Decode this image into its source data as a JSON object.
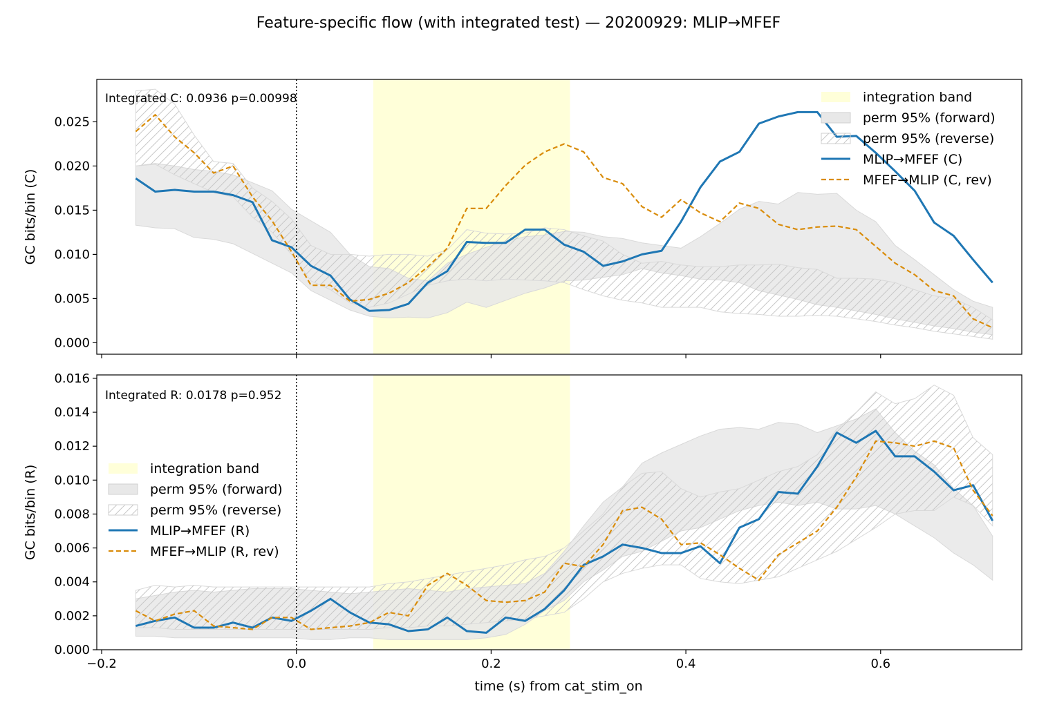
{
  "figure": {
    "title": "Feature-specific flow (with integrated test) — 20200929: MLIP→MFEF",
    "xlabel": "time (s) from cat_stim_on"
  },
  "colors": {
    "forward": "#1f77b4",
    "reverse": "#d98c0a",
    "band": "#ffffd9",
    "perm_forward_fill": "#e8e8e8",
    "perm_reverse_hatch": "#c8c8c8",
    "stim_line": "#000000"
  },
  "chart_data": [
    {
      "type": "line",
      "panel": "top",
      "ylabel": "GC bits/bin (C)",
      "annotation": "Integrated C: 0.0936  p=0.00998",
      "xlim": [
        -0.205,
        0.745
      ],
      "ylim": [
        -0.0013,
        0.0298
      ],
      "xticks": [
        -0.2,
        0.0,
        0.2,
        0.4,
        0.6
      ],
      "xtick_labels": [],
      "yticks": [
        0.0,
        0.005,
        0.01,
        0.015,
        0.02,
        0.025
      ],
      "ytick_labels": [
        "0.000",
        "0.005",
        "0.010",
        "0.015",
        "0.020",
        "0.025"
      ],
      "integration_band": [
        0.079,
        0.281
      ],
      "stim_onset": 0.0,
      "legend_position": "top-right",
      "legend": [
        "integration band",
        "perm 95% (forward)",
        "perm 95% (reverse)",
        "MLIP→MFEF (C)",
        "MFEF→MLIP (C, rev)"
      ],
      "x": [
        -0.165,
        -0.145,
        -0.125,
        -0.105,
        -0.085,
        -0.065,
        -0.045,
        -0.025,
        -0.005,
        0.015,
        0.035,
        0.055,
        0.075,
        0.095,
        0.115,
        0.135,
        0.155,
        0.175,
        0.195,
        0.215,
        0.235,
        0.255,
        0.275,
        0.295,
        0.315,
        0.335,
        0.355,
        0.375,
        0.395,
        0.415,
        0.435,
        0.455,
        0.475,
        0.495,
        0.515,
        0.535,
        0.555,
        0.575,
        0.595,
        0.615,
        0.635,
        0.655,
        0.675,
        0.695,
        0.715
      ],
      "series": [
        {
          "name": "MLIP→MFEF (C)",
          "style": "solid",
          "values": [
            0.0186,
            0.0171,
            0.0173,
            0.0171,
            0.0171,
            0.0167,
            0.0159,
            0.0116,
            0.0108,
            0.0087,
            0.0076,
            0.0049,
            0.0036,
            0.0037,
            0.0044,
            0.0068,
            0.0081,
            0.0114,
            0.0113,
            0.0113,
            0.0128,
            0.0128,
            0.0111,
            0.0103,
            0.0087,
            0.0092,
            0.01,
            0.0104,
            0.0137,
            0.0176,
            0.0205,
            0.0216,
            0.0248,
            0.0256,
            0.0261,
            0.0261,
            0.0233,
            0.0234,
            0.0215,
            0.0194,
            0.0172,
            0.0136,
            0.0121,
            0.0094,
            0.0068
          ]
        },
        {
          "name": "MFEF→MLIP (C, rev)",
          "style": "dashed",
          "values": [
            0.0239,
            0.0258,
            0.0233,
            0.0215,
            0.0192,
            0.02,
            0.0165,
            0.0138,
            0.0103,
            0.0065,
            0.0065,
            0.0047,
            0.0049,
            0.0056,
            0.0068,
            0.0086,
            0.0107,
            0.0152,
            0.0152,
            0.0178,
            0.0201,
            0.0216,
            0.0225,
            0.0216,
            0.0187,
            0.018,
            0.0154,
            0.0142,
            0.0162,
            0.0147,
            0.0137,
            0.0158,
            0.0152,
            0.0134,
            0.0128,
            0.0131,
            0.0132,
            0.0128,
            0.0109,
            0.009,
            0.0077,
            0.0059,
            0.0053,
            0.0027,
            0.0017
          ]
        }
      ],
      "bands": [
        {
          "name": "perm 95% (forward)",
          "style": "fill",
          "lower": [
            0.0133,
            0.013,
            0.0129,
            0.0119,
            0.0117,
            0.0112,
            0.0101,
            0.009,
            0.0079,
            0.0059,
            0.0048,
            0.0037,
            0.003,
            0.0028,
            0.0029,
            0.0028,
            0.0034,
            0.0046,
            0.004,
            0.0048,
            0.0056,
            0.0062,
            0.007,
            0.0071,
            0.0074,
            0.0077,
            0.0084,
            0.0079,
            0.0076,
            0.0072,
            0.0071,
            0.0068,
            0.0059,
            0.0054,
            0.0049,
            0.0043,
            0.004,
            0.0036,
            0.0032,
            0.0027,
            0.0023,
            0.0019,
            0.0016,
            0.0012,
            0.0009
          ],
          "upper": [
            0.02,
            0.0203,
            0.02,
            0.0196,
            0.0194,
            0.019,
            0.0181,
            0.0172,
            0.0151,
            0.0138,
            0.0125,
            0.01,
            0.0086,
            0.0084,
            0.0073,
            0.007,
            0.009,
            0.01,
            0.0108,
            0.0115,
            0.012,
            0.0122,
            0.0126,
            0.0125,
            0.012,
            0.0118,
            0.0113,
            0.011,
            0.0107,
            0.012,
            0.0135,
            0.0151,
            0.016,
            0.0157,
            0.017,
            0.0168,
            0.0169,
            0.015,
            0.0137,
            0.011,
            0.0094,
            0.0077,
            0.006,
            0.0047,
            0.004
          ]
        },
        {
          "name": "perm 95% (reverse)",
          "style": "hatch",
          "lower": [
            0.02,
            0.0202,
            0.019,
            0.018,
            0.017,
            0.0165,
            0.0142,
            0.0125,
            0.01,
            0.007,
            0.006,
            0.0045,
            0.004,
            0.0045,
            0.0055,
            0.0065,
            0.007,
            0.0072,
            0.007,
            0.0072,
            0.0071,
            0.007,
            0.0068,
            0.006,
            0.0053,
            0.0048,
            0.0045,
            0.004,
            0.004,
            0.004,
            0.0035,
            0.0033,
            0.0032,
            0.003,
            0.003,
            0.0031,
            0.003,
            0.0027,
            0.0024,
            0.002,
            0.0017,
            0.0013,
            0.001,
            0.0007,
            0.0004
          ],
          "upper": [
            0.0285,
            0.0287,
            0.027,
            0.0235,
            0.0205,
            0.0203,
            0.0175,
            0.016,
            0.014,
            0.011,
            0.01,
            0.01,
            0.0098,
            0.01,
            0.01,
            0.0098,
            0.0105,
            0.0128,
            0.0124,
            0.0123,
            0.0124,
            0.013,
            0.0128,
            0.0121,
            0.0115,
            0.01,
            0.009,
            0.0092,
            0.0088,
            0.0086,
            0.0086,
            0.0088,
            0.0088,
            0.0089,
            0.0085,
            0.0083,
            0.0073,
            0.0073,
            0.0072,
            0.0068,
            0.006,
            0.0053,
            0.005,
            0.004,
            0.0026
          ]
        }
      ]
    },
    {
      "type": "line",
      "panel": "bottom",
      "ylabel": "GC bits/bin (R)",
      "annotation": "Integrated R: 0.0178  p=0.952",
      "xlim": [
        -0.205,
        0.745
      ],
      "ylim": [
        0.0,
        0.0162
      ],
      "xticks": [
        -0.2,
        0.0,
        0.2,
        0.4,
        0.6
      ],
      "xtick_labels": [
        "−0.2",
        "0.0",
        "0.2",
        "0.4",
        "0.6"
      ],
      "yticks": [
        0.0,
        0.002,
        0.004,
        0.006,
        0.008,
        0.01,
        0.012,
        0.014,
        0.016
      ],
      "ytick_labels": [
        "0.000",
        "0.002",
        "0.004",
        "0.006",
        "0.008",
        "0.010",
        "0.012",
        "0.014",
        "0.016"
      ],
      "integration_band": [
        0.079,
        0.281
      ],
      "stim_onset": 0.0,
      "legend_position": "center-left",
      "legend": [
        "integration band",
        "perm 95% (forward)",
        "perm 95% (reverse)",
        "MLIP→MFEF (R)",
        "MFEF→MLIP (R, rev)"
      ],
      "x": [
        -0.165,
        -0.145,
        -0.125,
        -0.105,
        -0.085,
        -0.065,
        -0.045,
        -0.025,
        -0.005,
        0.015,
        0.035,
        0.055,
        0.075,
        0.095,
        0.115,
        0.135,
        0.155,
        0.175,
        0.195,
        0.215,
        0.235,
        0.255,
        0.275,
        0.295,
        0.315,
        0.335,
        0.355,
        0.375,
        0.395,
        0.415,
        0.435,
        0.455,
        0.475,
        0.495,
        0.515,
        0.535,
        0.555,
        0.575,
        0.595,
        0.615,
        0.635,
        0.655,
        0.675,
        0.695,
        0.715
      ],
      "series": [
        {
          "name": "MLIP→MFEF (R)",
          "style": "solid",
          "values": [
            0.0014,
            0.0017,
            0.0019,
            0.0013,
            0.0013,
            0.0016,
            0.0013,
            0.0019,
            0.0017,
            0.0023,
            0.003,
            0.0022,
            0.0016,
            0.0015,
            0.0011,
            0.0012,
            0.0019,
            0.0011,
            0.001,
            0.0019,
            0.0017,
            0.0024,
            0.0035,
            0.005,
            0.0055,
            0.0062,
            0.006,
            0.0057,
            0.0057,
            0.0061,
            0.0051,
            0.0072,
            0.0077,
            0.0093,
            0.0092,
            0.0108,
            0.0128,
            0.0122,
            0.0129,
            0.0114,
            0.0114,
            0.0105,
            0.0094,
            0.0097,
            0.0076
          ]
        },
        {
          "name": "MFEF→MLIP (R, rev)",
          "style": "dashed",
          "values": [
            0.0023,
            0.0017,
            0.0021,
            0.0023,
            0.0014,
            0.0013,
            0.0012,
            0.0019,
            0.0019,
            0.0012,
            0.0013,
            0.0014,
            0.0016,
            0.0022,
            0.002,
            0.0038,
            0.0045,
            0.0038,
            0.0029,
            0.0028,
            0.0029,
            0.0034,
            0.0051,
            0.0049,
            0.0062,
            0.0082,
            0.0084,
            0.0077,
            0.0062,
            0.0063,
            0.0056,
            0.0048,
            0.0041,
            0.0056,
            0.0063,
            0.007,
            0.0084,
            0.0102,
            0.0123,
            0.0122,
            0.012,
            0.0123,
            0.0119,
            0.0094,
            0.0079
          ]
        }
      ],
      "bands": [
        {
          "name": "perm 95% (forward)",
          "style": "fill",
          "lower": [
            0.0008,
            0.0008,
            0.0007,
            0.0007,
            0.0007,
            0.0007,
            0.0007,
            0.0007,
            0.0007,
            0.0006,
            0.0006,
            0.0007,
            0.0007,
            0.0006,
            0.0006,
            0.0006,
            0.0006,
            0.0006,
            0.0007,
            0.0009,
            0.0015,
            0.0023,
            0.0029,
            0.004,
            0.0047,
            0.0055,
            0.0058,
            0.0064,
            0.007,
            0.0072,
            0.0077,
            0.0082,
            0.0085,
            0.0087,
            0.0085,
            0.0087,
            0.0083,
            0.0083,
            0.0085,
            0.008,
            0.0073,
            0.0066,
            0.0057,
            0.005,
            0.0041
          ],
          "upper": [
            0.003,
            0.0032,
            0.0034,
            0.0035,
            0.0034,
            0.0035,
            0.0036,
            0.0036,
            0.0036,
            0.0035,
            0.0034,
            0.0033,
            0.0034,
            0.0035,
            0.0036,
            0.0035,
            0.0034,
            0.0036,
            0.0037,
            0.0038,
            0.0039,
            0.0045,
            0.0058,
            0.0073,
            0.0087,
            0.0096,
            0.011,
            0.0116,
            0.0121,
            0.0126,
            0.013,
            0.0131,
            0.013,
            0.0134,
            0.0133,
            0.0128,
            0.0132,
            0.0136,
            0.0142,
            0.0128,
            0.0117,
            0.0109,
            0.0095,
            0.0085,
            0.0067
          ]
        },
        {
          "name": "perm 95% (reverse)",
          "style": "hatch",
          "lower": [
            0.0013,
            0.0013,
            0.0012,
            0.0012,
            0.0012,
            0.0012,
            0.0012,
            0.0012,
            0.0012,
            0.0012,
            0.0012,
            0.0012,
            0.0012,
            0.0013,
            0.0013,
            0.0014,
            0.0014,
            0.0015,
            0.0016,
            0.0017,
            0.0018,
            0.002,
            0.0022,
            0.003,
            0.004,
            0.0045,
            0.0048,
            0.005,
            0.005,
            0.0042,
            0.004,
            0.0039,
            0.0041,
            0.0043,
            0.0048,
            0.0053,
            0.0058,
            0.0065,
            0.0072,
            0.008,
            0.0082,
            0.0082,
            0.009,
            0.0085,
            0.0073
          ],
          "upper": [
            0.0035,
            0.0038,
            0.0037,
            0.0038,
            0.0037,
            0.0037,
            0.0037,
            0.0037,
            0.0037,
            0.0037,
            0.0037,
            0.0037,
            0.0037,
            0.0039,
            0.004,
            0.0042,
            0.0044,
            0.0046,
            0.0048,
            0.005,
            0.0053,
            0.0055,
            0.006,
            0.007,
            0.008,
            0.0096,
            0.0104,
            0.0105,
            0.0095,
            0.009,
            0.0093,
            0.0095,
            0.01,
            0.0105,
            0.0108,
            0.0115,
            0.013,
            0.014,
            0.0152,
            0.0145,
            0.0148,
            0.0156,
            0.015,
            0.0125,
            0.0115
          ]
        }
      ]
    }
  ]
}
